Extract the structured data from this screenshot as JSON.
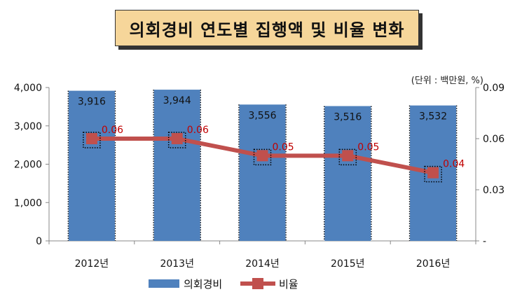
{
  "chart_data": {
    "type": "bar+line",
    "title": "의회경비 연도별 집행액 및 비율 변화",
    "unit_note": "(단위 : 백만원, %)",
    "categories": [
      "2012년",
      "2013년",
      "2014년",
      "2015년",
      "2016년"
    ],
    "series": [
      {
        "name": "의회경비",
        "type": "bar",
        "axis": "left",
        "values": [
          3916,
          3944,
          3556,
          3516,
          3532
        ],
        "labels": [
          "3,916",
          "3,944",
          "3,556",
          "3,516",
          "3,532"
        ],
        "color": "#4f81bd"
      },
      {
        "name": "비율",
        "type": "line",
        "axis": "right",
        "values": [
          0.06,
          0.06,
          0.05,
          0.05,
          0.04
        ],
        "labels": [
          "0.06",
          "0.06",
          "0.05",
          "0.05",
          "0.04"
        ],
        "color": "#c0504d",
        "label_color": "#c00000"
      }
    ],
    "left_axis": {
      "ylim": [
        0,
        4000
      ],
      "ticks": [
        0,
        1000,
        2000,
        3000,
        4000
      ],
      "tick_labels": [
        "0",
        "1,000",
        "2,000",
        "3,000",
        "4,000"
      ]
    },
    "right_axis": {
      "ylim": [
        0,
        0.09
      ],
      "ticks": [
        0,
        0.03,
        0.06,
        0.09
      ],
      "tick_labels": [
        "-",
        "0.03",
        "0.06",
        "0.09"
      ]
    },
    "legend": {
      "position": "bottom"
    }
  }
}
